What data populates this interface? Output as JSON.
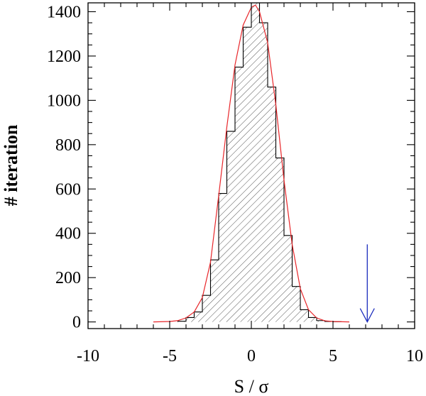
{
  "chart_data": {
    "type": "bar",
    "title": "",
    "xlabel": "S / σ",
    "ylabel": "# iteration",
    "xlim": [
      -10,
      10
    ],
    "ylim": [
      -30,
      1440
    ],
    "xticks": [
      -10,
      -5,
      0,
      5,
      10
    ],
    "xtick_labels": [
      "-10",
      "-5",
      "0",
      "5",
      "10"
    ],
    "yticks": [
      0,
      200,
      400,
      600,
      800,
      1000,
      1200,
      1400
    ],
    "ytick_labels": [
      "0",
      "200",
      "400",
      "600",
      "800",
      "1000",
      "1200",
      "1400"
    ],
    "bin_width": 0.5,
    "histogram": {
      "x_left": [
        -4.5,
        -4.0,
        -3.5,
        -3.0,
        -2.5,
        -2.0,
        -1.5,
        -1.0,
        -0.5,
        0.0,
        0.5,
        1.0,
        1.5,
        2.0,
        2.5,
        3.0,
        3.5,
        4.0,
        4.5,
        5.0
      ],
      "counts": [
        3,
        20,
        45,
        120,
        280,
        580,
        860,
        1150,
        1330,
        1440,
        1350,
        1060,
        740,
        390,
        160,
        55,
        20,
        6,
        2,
        1
      ]
    },
    "fit_curve": {
      "x": [
        -6,
        -5,
        -4.5,
        -4,
        -3.5,
        -3,
        -2.5,
        -2,
        -1.5,
        -1,
        -0.5,
        0,
        0.25,
        0.5,
        1,
        1.5,
        2,
        2.5,
        3,
        3.5,
        4,
        4.5,
        5,
        6
      ],
      "y": [
        0,
        2,
        6,
        18,
        45,
        110,
        270,
        570,
        880,
        1160,
        1340,
        1420,
        1430,
        1400,
        1260,
        980,
        640,
        350,
        150,
        55,
        18,
        5,
        2,
        0
      ]
    },
    "annotation": {
      "type": "arrow",
      "x": 7.1,
      "y_top": 350,
      "y_bottom": 0
    },
    "colors": {
      "histogram_edge": "#000000",
      "hatch": "#555555",
      "fit": "#e8262a",
      "arrow": "#1a2bbd",
      "axis": "#000000"
    },
    "grid": false,
    "legend": "none"
  }
}
